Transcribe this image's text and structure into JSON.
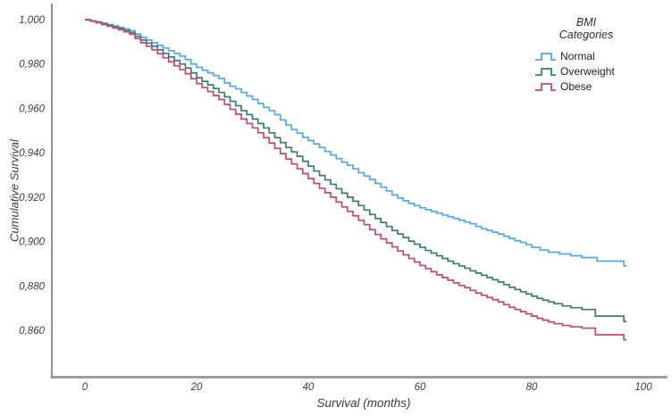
{
  "chart_data": {
    "type": "line",
    "subtype": "kaplan-meier-step",
    "title": "",
    "xlabel": "Survival (months)",
    "ylabel": "Cumulative Survival",
    "xlim": [
      -6,
      104
    ],
    "ylim": [
      0.838,
      1.007
    ],
    "grid": false,
    "legend_position": "top-right",
    "legend_title_line1": "BMI",
    "legend_title_line2": "Categories",
    "x_ticks": [
      {
        "value": 0,
        "label": "0"
      },
      {
        "value": 20,
        "label": "20"
      },
      {
        "value": 40,
        "label": "40"
      },
      {
        "value": 60,
        "label": "60"
      },
      {
        "value": 80,
        "label": "80"
      },
      {
        "value": 100,
        "label": "100"
      }
    ],
    "y_ticks": [
      {
        "value": 1.0,
        "label": "1,000"
      },
      {
        "value": 0.98,
        "label": "0,980"
      },
      {
        "value": 0.96,
        "label": "0,960"
      },
      {
        "value": 0.94,
        "label": "0,940"
      },
      {
        "value": 0.92,
        "label": "0,920"
      },
      {
        "value": 0.9,
        "label": "0,900"
      },
      {
        "value": 0.88,
        "label": "0,880"
      },
      {
        "value": 0.86,
        "label": "0,860"
      }
    ],
    "axis_colors": {
      "y_axis": "#6e6e6e",
      "x_axis": "#9e9e9e"
    },
    "series": [
      {
        "name": "Normal",
        "color": "#56a7e8",
        "points": [
          [
            0,
            1.0
          ],
          [
            1,
            0.9995
          ],
          [
            2,
            0.999
          ],
          [
            3,
            0.9984
          ],
          [
            4,
            0.9978
          ],
          [
            5,
            0.9972
          ],
          [
            6,
            0.9965
          ],
          [
            7,
            0.9958
          ],
          [
            8,
            0.995
          ],
          [
            9,
            0.9935
          ],
          [
            10,
            0.992
          ],
          [
            11,
            0.9908
          ],
          [
            12,
            0.9896
          ],
          [
            13,
            0.9884
          ],
          [
            14,
            0.9872
          ],
          [
            15,
            0.986
          ],
          [
            16,
            0.9848
          ],
          [
            17,
            0.9836
          ],
          [
            18,
            0.982
          ],
          [
            19,
            0.98
          ],
          [
            20,
            0.9785
          ],
          [
            21,
            0.9772
          ],
          [
            22,
            0.976
          ],
          [
            23,
            0.9748
          ],
          [
            24,
            0.9735
          ],
          [
            25,
            0.9715
          ],
          [
            26,
            0.97
          ],
          [
            27,
            0.9688
          ],
          [
            28,
            0.9672
          ],
          [
            29,
            0.9656
          ],
          [
            30,
            0.964
          ],
          [
            31,
            0.9622
          ],
          [
            32,
            0.9605
          ],
          [
            33,
            0.959
          ],
          [
            34,
            0.9572
          ],
          [
            35,
            0.9548
          ],
          [
            36,
            0.9525
          ],
          [
            37,
            0.9505
          ],
          [
            38,
            0.9488
          ],
          [
            39,
            0.947
          ],
          [
            40,
            0.9455
          ],
          [
            41,
            0.944
          ],
          [
            42,
            0.9424
          ],
          [
            43,
            0.9406
          ],
          [
            44,
            0.939
          ],
          [
            45,
            0.9374
          ],
          [
            46,
            0.9358
          ],
          [
            47,
            0.9344
          ],
          [
            48,
            0.9328
          ],
          [
            49,
            0.931
          ],
          [
            50,
            0.9295
          ],
          [
            51,
            0.928
          ],
          [
            52,
            0.9262
          ],
          [
            53,
            0.9245
          ],
          [
            54,
            0.9228
          ],
          [
            55,
            0.921
          ],
          [
            56,
            0.9196
          ],
          [
            57,
            0.9184
          ],
          [
            58,
            0.9172
          ],
          [
            59,
            0.9162
          ],
          [
            60,
            0.9152
          ],
          [
            61,
            0.9144
          ],
          [
            62,
            0.9136
          ],
          [
            63,
            0.9128
          ],
          [
            64,
            0.912
          ],
          [
            65,
            0.9112
          ],
          [
            66,
            0.9104
          ],
          [
            67,
            0.9096
          ],
          [
            68,
            0.9088
          ],
          [
            69,
            0.908
          ],
          [
            70,
            0.9068
          ],
          [
            71,
            0.9058
          ],
          [
            72,
            0.905
          ],
          [
            73,
            0.9042
          ],
          [
            74,
            0.9034
          ],
          [
            75,
            0.9024
          ],
          [
            76,
            0.9014
          ],
          [
            77,
            0.9004
          ],
          [
            78,
            0.8996
          ],
          [
            79,
            0.8986
          ],
          [
            80,
            0.8974
          ],
          [
            81.5,
            0.8962
          ],
          [
            83,
            0.8952
          ],
          [
            85,
            0.8944
          ],
          [
            87,
            0.8936
          ],
          [
            89,
            0.8928
          ],
          [
            91.7,
            0.8912
          ],
          [
            96.5,
            0.889
          ]
        ]
      },
      {
        "name": "Overweight",
        "color": "#3a7c6e",
        "points": [
          [
            0,
            1.0
          ],
          [
            1,
            0.9994
          ],
          [
            2,
            0.9988
          ],
          [
            3,
            0.9981
          ],
          [
            4,
            0.9974
          ],
          [
            5,
            0.9967
          ],
          [
            6,
            0.996
          ],
          [
            7,
            0.9952
          ],
          [
            8,
            0.9942
          ],
          [
            9,
            0.9925
          ],
          [
            10,
            0.9908
          ],
          [
            11,
            0.9894
          ],
          [
            12,
            0.988
          ],
          [
            13,
            0.9864
          ],
          [
            14,
            0.9848
          ],
          [
            15,
            0.9832
          ],
          [
            16,
            0.9816
          ],
          [
            17,
            0.98
          ],
          [
            18,
            0.9782
          ],
          [
            19,
            0.976
          ],
          [
            20,
            0.9738
          ],
          [
            21,
            0.9722
          ],
          [
            22,
            0.9706
          ],
          [
            23,
            0.969
          ],
          [
            24,
            0.9672
          ],
          [
            25,
            0.9652
          ],
          [
            26,
            0.9632
          ],
          [
            27,
            0.9612
          ],
          [
            28,
            0.959
          ],
          [
            29,
            0.9572
          ],
          [
            30,
            0.9552
          ],
          [
            31,
            0.9532
          ],
          [
            32,
            0.9512
          ],
          [
            33,
            0.949
          ],
          [
            34,
            0.9468
          ],
          [
            35,
            0.9446
          ],
          [
            36,
            0.9424
          ],
          [
            37,
            0.9404
          ],
          [
            38,
            0.9384
          ],
          [
            39,
            0.9362
          ],
          [
            40,
            0.934
          ],
          [
            41,
            0.9318
          ],
          [
            42,
            0.9298
          ],
          [
            43,
            0.9278
          ],
          [
            44,
            0.9258
          ],
          [
            45,
            0.9238
          ],
          [
            46,
            0.9218
          ],
          [
            47,
            0.92
          ],
          [
            48,
            0.9182
          ],
          [
            49,
            0.9162
          ],
          [
            50,
            0.9142
          ],
          [
            51,
            0.9122
          ],
          [
            52,
            0.9104
          ],
          [
            53,
            0.9086
          ],
          [
            54,
            0.9068
          ],
          [
            55,
            0.905
          ],
          [
            56,
            0.9034
          ],
          [
            57,
            0.9018
          ],
          [
            58,
            0.9002
          ],
          [
            59,
            0.8988
          ],
          [
            60,
            0.8974
          ],
          [
            61,
            0.896
          ],
          [
            62,
            0.8948
          ],
          [
            63,
            0.8936
          ],
          [
            64,
            0.8924
          ],
          [
            65,
            0.8912
          ],
          [
            66,
            0.89
          ],
          [
            67,
            0.889
          ],
          [
            68,
            0.888
          ],
          [
            69,
            0.8868
          ],
          [
            70,
            0.8858
          ],
          [
            71,
            0.8848
          ],
          [
            72,
            0.8838
          ],
          [
            73,
            0.8828
          ],
          [
            74,
            0.8818
          ],
          [
            75,
            0.8806
          ],
          [
            76,
            0.8794
          ],
          [
            77,
            0.8784
          ],
          [
            78,
            0.8774
          ],
          [
            79,
            0.8764
          ],
          [
            80,
            0.8754
          ],
          [
            81,
            0.8744
          ],
          [
            82,
            0.8736
          ],
          [
            83,
            0.8728
          ],
          [
            84,
            0.872
          ],
          [
            85.5,
            0.871
          ],
          [
            87,
            0.8702
          ],
          [
            89,
            0.8694
          ],
          [
            91.4,
            0.8664
          ],
          [
            96.5,
            0.864
          ]
        ]
      },
      {
        "name": "Obese",
        "color": "#c04a72",
        "points": [
          [
            0,
            1.0
          ],
          [
            1,
            0.9993
          ],
          [
            2,
            0.9986
          ],
          [
            3,
            0.9978
          ],
          [
            4,
            0.997
          ],
          [
            5,
            0.9962
          ],
          [
            6,
            0.9954
          ],
          [
            7,
            0.9945
          ],
          [
            8,
            0.9934
          ],
          [
            9,
            0.9915
          ],
          [
            10,
            0.9896
          ],
          [
            11,
            0.988
          ],
          [
            12,
            0.9864
          ],
          [
            13,
            0.9846
          ],
          [
            14,
            0.9828
          ],
          [
            15,
            0.981
          ],
          [
            16,
            0.9792
          ],
          [
            17,
            0.9775
          ],
          [
            18,
            0.9756
          ],
          [
            19,
            0.9734
          ],
          [
            20,
            0.9712
          ],
          [
            21,
            0.9694
          ],
          [
            22,
            0.9676
          ],
          [
            23,
            0.9658
          ],
          [
            24,
            0.964
          ],
          [
            25,
            0.9618
          ],
          [
            26,
            0.9596
          ],
          [
            27,
            0.9574
          ],
          [
            28,
            0.9552
          ],
          [
            29,
            0.9532
          ],
          [
            30,
            0.9512
          ],
          [
            31,
            0.949
          ],
          [
            32,
            0.9468
          ],
          [
            33,
            0.9444
          ],
          [
            34,
            0.942
          ],
          [
            35,
            0.9396
          ],
          [
            36,
            0.9372
          ],
          [
            37,
            0.935
          ],
          [
            38,
            0.9328
          ],
          [
            39,
            0.9306
          ],
          [
            40,
            0.9284
          ],
          [
            41,
            0.9262
          ],
          [
            42,
            0.924
          ],
          [
            43,
            0.922
          ],
          [
            44,
            0.92
          ],
          [
            45,
            0.9178
          ],
          [
            46,
            0.9156
          ],
          [
            47,
            0.9136
          ],
          [
            48,
            0.9116
          ],
          [
            49,
            0.9096
          ],
          [
            50,
            0.9076
          ],
          [
            51,
            0.9054
          ],
          [
            52,
            0.9032
          ],
          [
            53,
            0.9012
          ],
          [
            54,
            0.8994
          ],
          [
            55,
            0.8976
          ],
          [
            56,
            0.8958
          ],
          [
            57,
            0.894
          ],
          [
            58,
            0.8924
          ],
          [
            59,
            0.8908
          ],
          [
            60,
            0.8892
          ],
          [
            61,
            0.8878
          ],
          [
            62,
            0.8864
          ],
          [
            63,
            0.885
          ],
          [
            64,
            0.8838
          ],
          [
            65,
            0.8826
          ],
          [
            66,
            0.8814
          ],
          [
            67,
            0.8802
          ],
          [
            68,
            0.8792
          ],
          [
            69,
            0.878
          ],
          [
            70,
            0.8768
          ],
          [
            71,
            0.8758
          ],
          [
            72,
            0.8748
          ],
          [
            73,
            0.8738
          ],
          [
            74,
            0.8728
          ],
          [
            75,
            0.8716
          ],
          [
            76,
            0.8704
          ],
          [
            77,
            0.8694
          ],
          [
            78,
            0.8684
          ],
          [
            79,
            0.8674
          ],
          [
            80,
            0.8664
          ],
          [
            81,
            0.8654
          ],
          [
            82,
            0.8646
          ],
          [
            83,
            0.8638
          ],
          [
            84,
            0.863
          ],
          [
            85.5,
            0.8622
          ],
          [
            87,
            0.8616
          ],
          [
            89,
            0.861
          ],
          [
            91.4,
            0.858
          ],
          [
            96.5,
            0.8558
          ]
        ]
      }
    ]
  }
}
